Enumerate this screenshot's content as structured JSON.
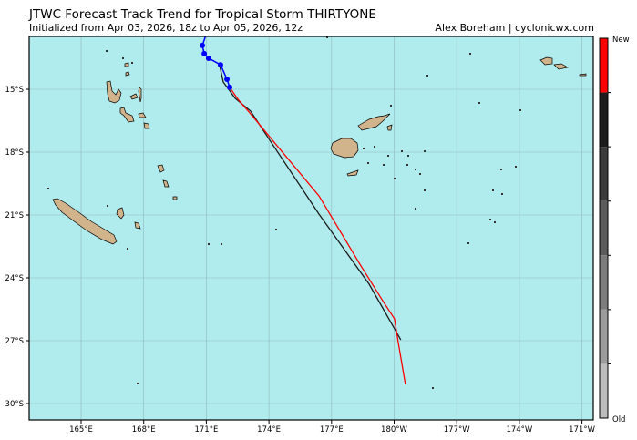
{
  "title": "JTWC Forecast Track Trend for Tropical Storm THIRTYONE",
  "subtitle": "Initialized from Apr 03, 2026, 18z to Apr 05, 2026, 12z",
  "credit": "Alex Boreham | cyclonicwx.com",
  "colors": {
    "ocean": "#b0eced",
    "land": "#d2b48c",
    "observed": "#0000ff",
    "latest": "#ff0000",
    "previous": "#1a1a1a"
  },
  "map": {
    "lon_range": [
      162.5,
      189.8
    ],
    "lat_range": [
      -30.8,
      -12.5
    ],
    "lon_ticks": [
      {
        "v": 165,
        "label": "165°E"
      },
      {
        "v": 168,
        "label": "168°E"
      },
      {
        "v": 171,
        "label": "171°E"
      },
      {
        "v": 174,
        "label": "174°E"
      },
      {
        "v": 177,
        "label": "177°E"
      },
      {
        "v": 180,
        "label": "180°W"
      },
      {
        "v": 183,
        "label": "177°W"
      },
      {
        "v": 186,
        "label": "174°W"
      },
      {
        "v": 189,
        "label": "171°W"
      }
    ],
    "lat_ticks": [
      {
        "v": -15,
        "label": "15°S"
      },
      {
        "v": -18,
        "label": "18°S"
      },
      {
        "v": -21,
        "label": "21°S"
      },
      {
        "v": -24,
        "label": "24°S"
      },
      {
        "v": -27,
        "label": "27°S"
      },
      {
        "v": -30,
        "label": "30°S"
      }
    ],
    "grid": true
  },
  "tracks": {
    "observed": [
      [
        170.95,
        -12.5
      ],
      [
        170.81,
        -12.91
      ],
      [
        170.9,
        -13.3
      ],
      [
        171.11,
        -13.52
      ],
      [
        171.68,
        -13.83
      ],
      [
        171.99,
        -14.52
      ],
      [
        172.12,
        -14.91
      ]
    ],
    "previous": [
      [
        171.64,
        -13.87
      ],
      [
        171.81,
        -14.65
      ],
      [
        172.38,
        -15.43
      ],
      [
        173.12,
        -16.04
      ],
      [
        173.78,
        -17.04
      ],
      [
        176.4,
        -20.96
      ],
      [
        178.8,
        -24.3
      ],
      [
        180.32,
        -26.96
      ]
    ],
    "latest": [
      [
        172.12,
        -14.91
      ],
      [
        172.55,
        -15.52
      ],
      [
        173.12,
        -16.17
      ],
      [
        174.21,
        -17.48
      ],
      [
        176.4,
        -20.09
      ],
      [
        178.36,
        -23.35
      ],
      [
        179.45,
        -25.09
      ],
      [
        180.02,
        -25.96
      ],
      [
        180.19,
        -27.04
      ],
      [
        180.54,
        -29.09
      ]
    ]
  },
  "colorbar": {
    "top_label": "New",
    "bottom_label": "Old",
    "colors": [
      "#ff0000",
      "#1c1c1c",
      "#3a3a3a",
      "#5c5c5c",
      "#7c7c7c",
      "#9c9c9c",
      "#bcbcbc"
    ]
  }
}
